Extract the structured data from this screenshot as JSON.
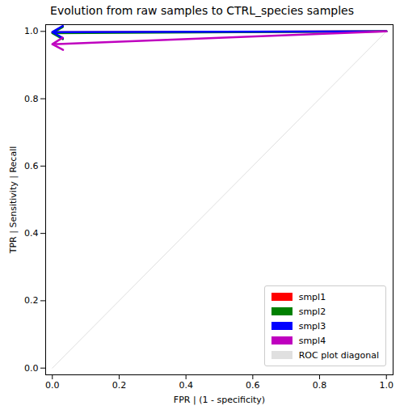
{
  "chart_data": {
    "type": "arrow",
    "title": "Evolution from raw samples to CTRL_species samples",
    "x_label": "FPR | (1 - specificity)",
    "y_label": "TPR | Sensitivity | Recall",
    "xlim": [
      -0.02,
      1.02
    ],
    "ylim": [
      -0.02,
      1.02
    ],
    "xticks": [
      {
        "value": 0,
        "label": "0.0"
      },
      {
        "value": 0.2,
        "label": "0.2"
      },
      {
        "value": 0.4,
        "label": "0.4"
      },
      {
        "value": 0.6,
        "label": "0.6"
      },
      {
        "value": 0.8,
        "label": "0.8"
      },
      {
        "value": 1,
        "label": "1.0"
      }
    ],
    "yticks": [
      {
        "value": 0,
        "label": "0.0"
      },
      {
        "value": 0.2,
        "label": "0.2"
      },
      {
        "value": 0.4,
        "label": "0.4"
      },
      {
        "value": 0.6,
        "label": "0.6"
      },
      {
        "value": 0.8,
        "label": "0.8"
      },
      {
        "value": 1,
        "label": "1.0"
      }
    ],
    "grid": false,
    "legend": "lower right",
    "series": [
      {
        "name": "smpl1",
        "color": "#ff0000",
        "type": "arrow",
        "x": [
          1.0,
          0.0
        ],
        "values": [
          1.0,
          0.997
        ]
      },
      {
        "name": "smpl2",
        "color": "#008000",
        "type": "arrow",
        "x": [
          1.0,
          0.0
        ],
        "values": [
          1.0,
          0.995
        ]
      },
      {
        "name": "smpl3",
        "color": "#0000ff",
        "type": "arrow",
        "x": [
          1.0,
          0.0
        ],
        "values": [
          1.0,
          0.998
        ]
      },
      {
        "name": "smpl4",
        "color": "#bf00bf",
        "type": "arrow",
        "x": [
          1.0,
          0.0
        ],
        "values": [
          1.0,
          0.962
        ]
      },
      {
        "name": "ROC plot diagonal",
        "color": "#e0e0e0",
        "type": "line",
        "x": [
          0.0,
          1.0
        ],
        "values": [
          0.0,
          1.0
        ]
      }
    ]
  }
}
